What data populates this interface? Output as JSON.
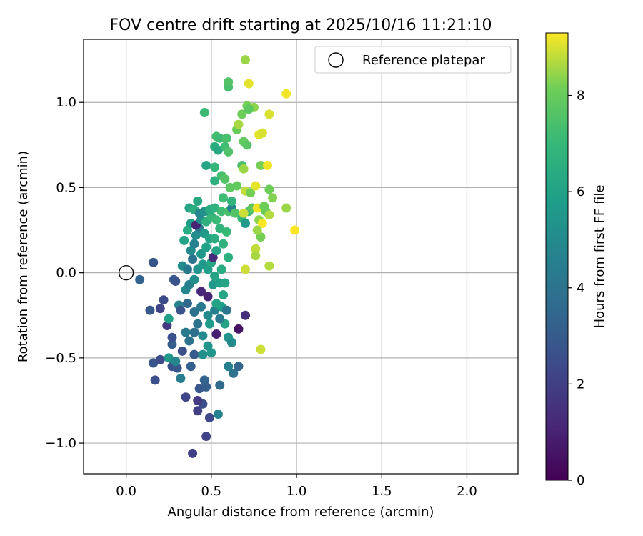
{
  "chart_data": {
    "type": "scatter",
    "title": "FOV centre drift starting at 2025/10/16 11:21:10",
    "xlabel": "Angular distance from reference (arcmin)",
    "ylabel": "Rotation from reference (arcmin)",
    "xlim": [
      -0.25,
      2.3
    ],
    "ylim": [
      -1.18,
      1.37
    ],
    "xticks": [
      0.0,
      0.5,
      1.0,
      1.5,
      2.0
    ],
    "xtick_labels": [
      "0.0",
      "0.5",
      "1.0",
      "1.5",
      "2.0"
    ],
    "yticks": [
      -1.0,
      -0.5,
      0.0,
      0.5,
      1.0
    ],
    "ytick_labels": [
      "−1.0",
      "−0.5",
      "0.0",
      "0.5",
      "1.0"
    ],
    "grid": true,
    "legend": {
      "position": "top-right",
      "entries": [
        "Reference platepar"
      ]
    },
    "reference_point": {
      "x": 0.0,
      "y": 0.0,
      "label": "Reference platepar"
    },
    "colorbar": {
      "label": "Hours from first FF file",
      "colormap": "viridis",
      "range": [
        0,
        9.3
      ],
      "ticks": [
        0,
        2,
        4,
        6,
        8
      ],
      "tick_labels": [
        "0",
        "2",
        "4",
        "6",
        "8"
      ]
    },
    "points": [
      {
        "x": 0.39,
        "y": -1.06,
        "c": 2.0
      },
      {
        "x": 0.47,
        "y": -0.96,
        "c": 2.1
      },
      {
        "x": 0.49,
        "y": -0.85,
        "c": 2.3
      },
      {
        "x": 0.42,
        "y": -0.81,
        "c": 2.0
      },
      {
        "x": 0.45,
        "y": -0.77,
        "c": 2.5
      },
      {
        "x": 0.42,
        "y": -0.75,
        "c": 1.8
      },
      {
        "x": 0.54,
        "y": -0.83,
        "c": 4.6
      },
      {
        "x": 0.35,
        "y": -0.73,
        "c": 2.2
      },
      {
        "x": 0.43,
        "y": -0.68,
        "c": 2.9
      },
      {
        "x": 0.47,
        "y": -0.67,
        "c": 3.1
      },
      {
        "x": 0.46,
        "y": -0.63,
        "c": 3.3
      },
      {
        "x": 0.55,
        "y": -0.66,
        "c": 3.6
      },
      {
        "x": 0.17,
        "y": -0.63,
        "c": 2.6
      },
      {
        "x": 0.32,
        "y": -0.62,
        "c": 4.4
      },
      {
        "x": 0.16,
        "y": -0.53,
        "c": 2.8
      },
      {
        "x": 0.2,
        "y": -0.51,
        "c": 2.4
      },
      {
        "x": 0.27,
        "y": -0.55,
        "c": 2.7
      },
      {
        "x": 0.3,
        "y": -0.56,
        "c": 2.9
      },
      {
        "x": 0.38,
        "y": -0.55,
        "c": 3.2
      },
      {
        "x": 0.4,
        "y": -0.48,
        "c": 3.0
      },
      {
        "x": 0.33,
        "y": -0.46,
        "c": 2.6
      },
      {
        "x": 0.25,
        "y": -0.5,
        "c": 5.6
      },
      {
        "x": 0.29,
        "y": -0.52,
        "c": 4.8
      },
      {
        "x": 0.45,
        "y": -0.48,
        "c": 5.2
      },
      {
        "x": 0.5,
        "y": -0.47,
        "c": 5.5
      },
      {
        "x": 0.48,
        "y": -0.43,
        "c": 5.4
      },
      {
        "x": 0.6,
        "y": -0.55,
        "c": 4.5
      },
      {
        "x": 0.63,
        "y": -0.59,
        "c": 4.0
      },
      {
        "x": 0.66,
        "y": -0.55,
        "c": 3.4
      },
      {
        "x": 0.79,
        "y": -0.45,
        "c": 8.9
      },
      {
        "x": 0.27,
        "y": -0.42,
        "c": 3.1
      },
      {
        "x": 0.27,
        "y": -0.38,
        "c": 2.6
      },
      {
        "x": 0.37,
        "y": -0.4,
        "c": 4.0
      },
      {
        "x": 0.4,
        "y": -0.35,
        "c": 3.8
      },
      {
        "x": 0.45,
        "y": -0.37,
        "c": 4.9
      },
      {
        "x": 0.53,
        "y": -0.36,
        "c": 0.9
      },
      {
        "x": 0.35,
        "y": -0.35,
        "c": 4.3
      },
      {
        "x": 0.42,
        "y": -0.3,
        "c": 4.0
      },
      {
        "x": 0.49,
        "y": -0.3,
        "c": 5.7
      },
      {
        "x": 0.58,
        "y": -0.3,
        "c": 6.0
      },
      {
        "x": 0.6,
        "y": -0.38,
        "c": 5.3
      },
      {
        "x": 0.62,
        "y": -0.41,
        "c": 5.0
      },
      {
        "x": 0.66,
        "y": -0.33,
        "c": 0.5
      },
      {
        "x": 0.7,
        "y": -0.25,
        "c": 1.4
      },
      {
        "x": 0.24,
        "y": -0.31,
        "c": 1.7
      },
      {
        "x": 0.25,
        "y": -0.27,
        "c": 5.9
      },
      {
        "x": 0.14,
        "y": -0.22,
        "c": 2.9
      },
      {
        "x": 0.2,
        "y": -0.21,
        "c": 2.2
      },
      {
        "x": 0.22,
        "y": -0.16,
        "c": 2.4
      },
      {
        "x": 0.31,
        "y": -0.19,
        "c": 4.7
      },
      {
        "x": 0.32,
        "y": -0.22,
        "c": 2.7
      },
      {
        "x": 0.36,
        "y": -0.18,
        "c": 3.5
      },
      {
        "x": 0.4,
        "y": -0.23,
        "c": 3.9
      },
      {
        "x": 0.44,
        "y": -0.2,
        "c": 4.2
      },
      {
        "x": 0.48,
        "y": -0.25,
        "c": 5.0
      },
      {
        "x": 0.52,
        "y": -0.22,
        "c": 4.6
      },
      {
        "x": 0.56,
        "y": -0.2,
        "c": 5.8
      },
      {
        "x": 0.59,
        "y": -0.22,
        "c": 4.1
      },
      {
        "x": 0.55,
        "y": -0.27,
        "c": 4.3
      },
      {
        "x": 0.35,
        "y": -0.1,
        "c": 4.8
      },
      {
        "x": 0.37,
        "y": -0.07,
        "c": 4.5
      },
      {
        "x": 0.4,
        "y": -0.04,
        "c": 5.2
      },
      {
        "x": 0.44,
        "y": -0.11,
        "c": 1.2
      },
      {
        "x": 0.48,
        "y": -0.14,
        "c": 1.0
      },
      {
        "x": 0.51,
        "y": -0.07,
        "c": 5.6
      },
      {
        "x": 0.55,
        "y": -0.06,
        "c": 5.9
      },
      {
        "x": 0.57,
        "y": -0.13,
        "c": 6.2
      },
      {
        "x": 0.53,
        "y": -0.18,
        "c": 6.0
      },
      {
        "x": 0.58,
        "y": -0.06,
        "c": 6.1
      },
      {
        "x": 0.28,
        "y": -0.04,
        "c": 3.0
      },
      {
        "x": 0.29,
        "y": -0.05,
        "c": 2.7
      },
      {
        "x": 0.08,
        "y": -0.04,
        "c": 3.3
      },
      {
        "x": 0.16,
        "y": 0.06,
        "c": 2.8
      },
      {
        "x": 0.33,
        "y": 0.04,
        "c": 5.1
      },
      {
        "x": 0.36,
        "y": 0.02,
        "c": 4.2
      },
      {
        "x": 0.39,
        "y": 0.08,
        "c": 4.0
      },
      {
        "x": 0.42,
        "y": 0.02,
        "c": 5.4
      },
      {
        "x": 0.45,
        "y": 0.05,
        "c": 5.6
      },
      {
        "x": 0.48,
        "y": 0.02,
        "c": 5.8
      },
      {
        "x": 0.5,
        "y": 0.06,
        "c": 6.3
      },
      {
        "x": 0.52,
        "y": -0.02,
        "c": 6.1
      },
      {
        "x": 0.56,
        "y": 0.02,
        "c": 6.4
      },
      {
        "x": 0.6,
        "y": 0.09,
        "c": 6.6
      },
      {
        "x": 0.38,
        "y": 0.13,
        "c": 5.0
      },
      {
        "x": 0.4,
        "y": 0.17,
        "c": 4.6
      },
      {
        "x": 0.44,
        "y": 0.11,
        "c": 5.5
      },
      {
        "x": 0.47,
        "y": 0.15,
        "c": 5.9
      },
      {
        "x": 0.51,
        "y": 0.09,
        "c": 1.3
      },
      {
        "x": 0.53,
        "y": 0.13,
        "c": 6.2
      },
      {
        "x": 0.57,
        "y": 0.17,
        "c": 6.7
      },
      {
        "x": 0.34,
        "y": 0.19,
        "c": 6.1
      },
      {
        "x": 0.36,
        "y": 0.25,
        "c": 6.4
      },
      {
        "x": 0.41,
        "y": 0.22,
        "c": 5.2
      },
      {
        "x": 0.43,
        "y": 0.26,
        "c": 4.4
      },
      {
        "x": 0.46,
        "y": 0.23,
        "c": 5.6
      },
      {
        "x": 0.49,
        "y": 0.2,
        "c": 6.0
      },
      {
        "x": 0.52,
        "y": 0.2,
        "c": 6.5
      },
      {
        "x": 0.55,
        "y": 0.26,
        "c": 6.8
      },
      {
        "x": 0.59,
        "y": 0.24,
        "c": 7.0
      },
      {
        "x": 0.38,
        "y": 0.29,
        "c": 5.8
      },
      {
        "x": 0.41,
        "y": 0.28,
        "c": 1.0
      },
      {
        "x": 0.44,
        "y": 0.31,
        "c": 5.1
      },
      {
        "x": 0.47,
        "y": 0.3,
        "c": 6.6
      },
      {
        "x": 0.5,
        "y": 0.33,
        "c": 6.9
      },
      {
        "x": 0.53,
        "y": 0.31,
        "c": 7.1
      },
      {
        "x": 0.37,
        "y": 0.38,
        "c": 6.2
      },
      {
        "x": 0.4,
        "y": 0.37,
        "c": 6.5
      },
      {
        "x": 0.43,
        "y": 0.35,
        "c": 4.8
      },
      {
        "x": 0.46,
        "y": 0.36,
        "c": 5.3
      },
      {
        "x": 0.49,
        "y": 0.37,
        "c": 6.4
      },
      {
        "x": 0.52,
        "y": 0.38,
        "c": 6.7
      },
      {
        "x": 0.56,
        "y": 0.36,
        "c": 7.2
      },
      {
        "x": 0.6,
        "y": 0.36,
        "c": 7.4
      },
      {
        "x": 0.42,
        "y": 0.42,
        "c": 6.3
      },
      {
        "x": 0.62,
        "y": 0.38,
        "c": 4.7
      },
      {
        "x": 0.64,
        "y": 0.35,
        "c": 7.6
      },
      {
        "x": 0.68,
        "y": 0.32,
        "c": 7.0
      },
      {
        "x": 0.7,
        "y": 0.29,
        "c": 5.7
      },
      {
        "x": 0.72,
        "y": 0.36,
        "c": 7.3
      },
      {
        "x": 0.69,
        "y": 0.35,
        "c": 8.9
      },
      {
        "x": 0.74,
        "y": 0.38,
        "c": 7.8
      },
      {
        "x": 0.57,
        "y": 0.44,
        "c": 7.2
      },
      {
        "x": 0.62,
        "y": 0.42,
        "c": 6.8
      },
      {
        "x": 0.7,
        "y": 0.48,
        "c": 8.8
      },
      {
        "x": 0.73,
        "y": 0.47,
        "c": 8.2
      },
      {
        "x": 0.76,
        "y": 0.51,
        "c": 9.1
      },
      {
        "x": 0.77,
        "y": 0.38,
        "c": 9.2
      },
      {
        "x": 0.78,
        "y": 0.31,
        "c": 8.4
      },
      {
        "x": 0.8,
        "y": 0.29,
        "c": 9.3
      },
      {
        "x": 0.82,
        "y": 0.36,
        "c": 8.0
      },
      {
        "x": 0.84,
        "y": 0.34,
        "c": 8.7
      },
      {
        "x": 0.79,
        "y": 0.21,
        "c": 8.2
      },
      {
        "x": 0.77,
        "y": 0.25,
        "c": 8.5
      },
      {
        "x": 0.81,
        "y": 0.39,
        "c": 8.1
      },
      {
        "x": 0.76,
        "y": 0.14,
        "c": 8.8
      },
      {
        "x": 0.76,
        "y": 0.1,
        "c": 8.6
      },
      {
        "x": 0.84,
        "y": 0.04,
        "c": 8.7
      },
      {
        "x": 0.7,
        "y": 0.02,
        "c": 8.9
      },
      {
        "x": 0.86,
        "y": 0.44,
        "c": 8.3
      },
      {
        "x": 0.84,
        "y": 0.49,
        "c": 8.1
      },
      {
        "x": 0.94,
        "y": 0.38,
        "c": 8.5
      },
      {
        "x": 0.99,
        "y": 0.25,
        "c": 9.3
      },
      {
        "x": 0.52,
        "y": 0.54,
        "c": 6.6
      },
      {
        "x": 0.56,
        "y": 0.57,
        "c": 7.3
      },
      {
        "x": 0.58,
        "y": 0.55,
        "c": 7.6
      },
      {
        "x": 0.61,
        "y": 0.5,
        "c": 7.8
      },
      {
        "x": 0.65,
        "y": 0.51,
        "c": 7.9
      },
      {
        "x": 0.47,
        "y": 0.63,
        "c": 6.2
      },
      {
        "x": 0.52,
        "y": 0.62,
        "c": 6.9
      },
      {
        "x": 0.68,
        "y": 0.63,
        "c": 7.4
      },
      {
        "x": 0.69,
        "y": 0.61,
        "c": 8.5
      },
      {
        "x": 0.79,
        "y": 0.63,
        "c": 8.2
      },
      {
        "x": 0.83,
        "y": 0.63,
        "c": 9.2
      },
      {
        "x": 0.52,
        "y": 0.74,
        "c": 6.5
      },
      {
        "x": 0.54,
        "y": 0.72,
        "c": 6.3
      },
      {
        "x": 0.58,
        "y": 0.74,
        "c": 7.2
      },
      {
        "x": 0.6,
        "y": 0.71,
        "c": 7.5
      },
      {
        "x": 0.69,
        "y": 0.77,
        "c": 7.9
      },
      {
        "x": 0.71,
        "y": 0.75,
        "c": 7.7
      },
      {
        "x": 0.53,
        "y": 0.8,
        "c": 7.3
      },
      {
        "x": 0.55,
        "y": 0.79,
        "c": 7.1
      },
      {
        "x": 0.59,
        "y": 0.79,
        "c": 7.4
      },
      {
        "x": 0.65,
        "y": 0.84,
        "c": 8.0
      },
      {
        "x": 0.66,
        "y": 0.87,
        "c": 8.6
      },
      {
        "x": 0.78,
        "y": 0.81,
        "c": 9.1
      },
      {
        "x": 0.8,
        "y": 0.82,
        "c": 9.0
      },
      {
        "x": 0.46,
        "y": 0.94,
        "c": 7.1
      },
      {
        "x": 0.68,
        "y": 0.93,
        "c": 8.1
      },
      {
        "x": 0.71,
        "y": 0.98,
        "c": 8.2
      },
      {
        "x": 0.75,
        "y": 0.97,
        "c": 8.4
      },
      {
        "x": 0.72,
        "y": 0.96,
        "c": 7.8
      },
      {
        "x": 0.84,
        "y": 0.93,
        "c": 9.0
      },
      {
        "x": 0.6,
        "y": 1.09,
        "c": 7.4
      },
      {
        "x": 0.6,
        "y": 1.12,
        "c": 7.6
      },
      {
        "x": 0.72,
        "y": 1.11,
        "c": 9.1
      },
      {
        "x": 0.7,
        "y": 1.25,
        "c": 8.5
      },
      {
        "x": 0.94,
        "y": 1.05,
        "c": 9.2
      }
    ]
  }
}
